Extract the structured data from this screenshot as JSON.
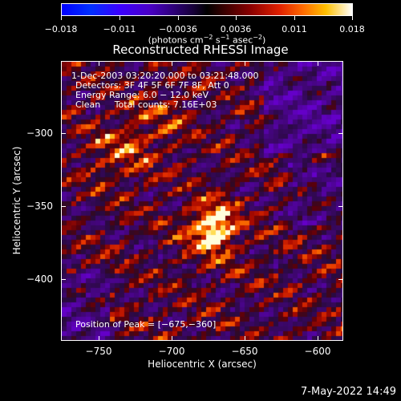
{
  "colorbar": {
    "ticks": [
      "−0.018",
      "−0.011",
      "−0.0036",
      "0.0036",
      "0.011",
      "0.018"
    ],
    "units_prefix": "(photons cm",
    "units_exp1": "−2",
    "units_mid": " s",
    "units_exp2": "−1",
    "units_mid2": " asec",
    "units_exp3": "−2",
    "units_suffix": ")"
  },
  "title": "Reconstructed RHESSI Image",
  "info": {
    "time": "1-Dec-2003 03:20:20.000 to 03:21:48.000",
    "detectors": "Detectors: 3F 4F 5F 6F 7F 8F, Att 0",
    "energy": "Energy Range: 6.0 − 12.0 keV",
    "clean": "Clean     Total counts: 7.16E+03",
    "peak": "Position of Peak = [−675,−360]"
  },
  "axes": {
    "xlabel": "Heliocentric X (arcsec)",
    "ylabel": "Heliocentric Y (arcsec)",
    "xticks": [
      "−750",
      "−700",
      "−650",
      "−600"
    ],
    "yticks": [
      "−300",
      "−350",
      "−400"
    ]
  },
  "timestamp": "7-May-2022 14:49"
}
